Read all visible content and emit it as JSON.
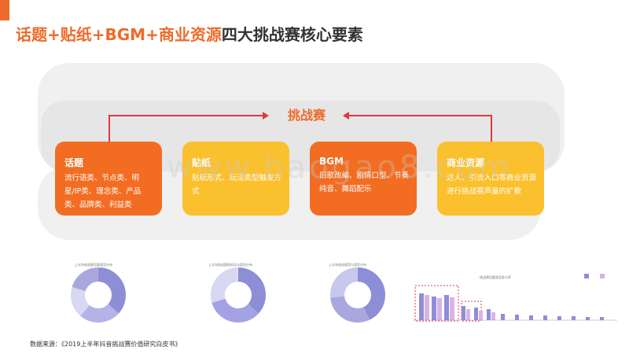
{
  "title": {
    "highlight": "话题+贴纸+BGM+商业资源",
    "rest": "四大挑战赛核心要素"
  },
  "center_label": "挑战赛",
  "cards": [
    {
      "title": "话题",
      "body": "流行语类、节点类、明星/IP类、理念类、产品类、品牌类、利益类"
    },
    {
      "title": "贴纸",
      "body": "贴纸形式、玩法类型触发方式"
    },
    {
      "title": "BGM",
      "body": "旧歌改编、剧情口型、节奏纯音、舞蹈配乐"
    },
    {
      "title": "商业资源",
      "body": "达人、引流入口等商业资源进行挑战赛声量的扩散"
    }
  ],
  "watermark": "www.baogao8.com",
  "mini_charts": [
    {
      "title": "上半年挑战赛话题类型分布"
    },
    {
      "title": "上半年挑战赛贴纸玩法类型分布"
    },
    {
      "title": "上半年挑战赛音乐类型分布"
    },
    {
      "title": "挑战赛话题类型参与率"
    }
  ],
  "source": "数据来源：《2019上半年抖音挑战赛价值研究白皮书》",
  "colors": {
    "accent": "#ef6a2a",
    "orange": "#f26d21",
    "yellow": "#fbc02d",
    "red": "#e0393e"
  }
}
